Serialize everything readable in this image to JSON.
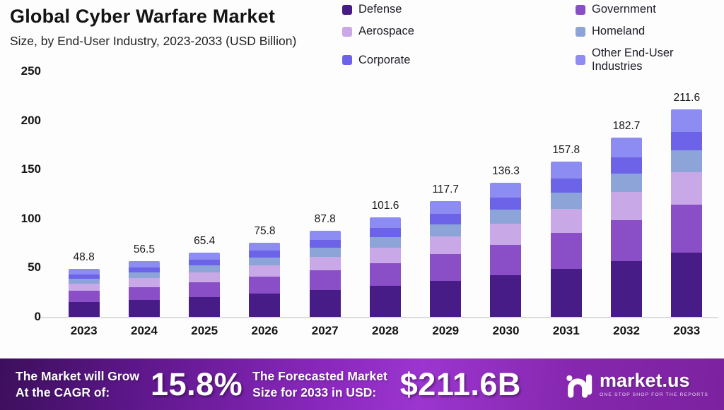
{
  "header": {
    "title": "Global Cyber Warfare Market",
    "subtitle": "Size, by End-User Industry, 2023-2033 (USD Billion)"
  },
  "legend": [
    {
      "label": "Defense",
      "color": "#471c87"
    },
    {
      "label": "Government",
      "color": "#8a4ec7"
    },
    {
      "label": "Aerospace",
      "color": "#c9a8e8"
    },
    {
      "label": "Homeland",
      "color": "#8ca4d8"
    },
    {
      "label": "Corporate",
      "color": "#6c63e8"
    },
    {
      "label": "Other End-User Industries",
      "color": "#8d8cf2"
    }
  ],
  "chart_data": {
    "type": "bar",
    "stacked": true,
    "title": "Global Cyber Warfare Market",
    "subtitle": "Size, by End-User Industry, 2023-2033 (USD Billion)",
    "xlabel": "",
    "ylabel": "USD Billion",
    "ylim": [
      0,
      250
    ],
    "y_ticks": [
      0,
      50,
      100,
      150,
      200,
      250
    ],
    "grid": false,
    "legend_position": "top-right",
    "categories": [
      "2023",
      "2024",
      "2025",
      "2026",
      "2027",
      "2028",
      "2029",
      "2030",
      "2031",
      "2032",
      "2033"
    ],
    "totals": [
      "48.8",
      "56.5",
      "65.4",
      "75.8",
      "87.8",
      "101.6",
      "117.7",
      "136.3",
      "157.8",
      "182.7",
      "211.6"
    ],
    "series": [
      {
        "name": "Defense",
        "color": "#471c87",
        "values": [
          15.1,
          17.5,
          20.3,
          23.5,
          27.2,
          31.5,
          36.5,
          42.3,
          48.9,
          56.6,
          65.6
        ]
      },
      {
        "name": "Government",
        "color": "#8a4ec7",
        "values": [
          11.2,
          13.0,
          15.0,
          17.4,
          20.2,
          23.4,
          27.1,
          31.3,
          36.3,
          42.0,
          48.7
        ]
      },
      {
        "name": "Aerospace",
        "color": "#c9a8e8",
        "values": [
          7.6,
          8.8,
          10.1,
          11.7,
          13.6,
          15.7,
          18.2,
          21.1,
          24.5,
          28.3,
          32.8
        ]
      },
      {
        "name": "Homeland",
        "color": "#8ca4d8",
        "values": [
          5.1,
          5.9,
          6.9,
          8.0,
          9.2,
          10.7,
          12.4,
          14.3,
          16.6,
          19.2,
          22.2
        ]
      },
      {
        "name": "Corporate",
        "color": "#6c63e8",
        "values": [
          4.4,
          5.1,
          5.9,
          6.8,
          7.9,
          9.1,
          10.6,
          12.3,
          14.2,
          16.4,
          19.0
        ]
      },
      {
        "name": "Other End-User Industries",
        "color": "#8d8cf2",
        "values": [
          5.4,
          6.2,
          7.2,
          8.4,
          9.7,
          11.2,
          12.9,
          15.0,
          17.3,
          20.2,
          23.3
        ]
      }
    ]
  },
  "banner": {
    "cagr_line1": "The Market will Grow",
    "cagr_line2": "At the CAGR of:",
    "cagr_value": "15.8%",
    "forecast_line1": "The Forecasted Market",
    "forecast_line2": "Size for 2033 in USD:",
    "forecast_value": "$211.6B",
    "logo_text": "market.us",
    "logo_tagline": "One Stop Shop For The Reports"
  }
}
